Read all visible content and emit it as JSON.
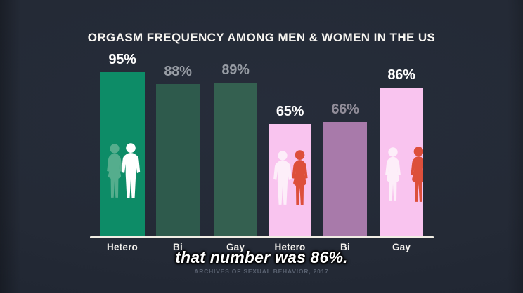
{
  "title": "ORGASM FREQUENCY AMONG MEN & WOMEN IN THE US",
  "caption": "that number was 86%.",
  "source": "ARCHIVES OF SEXUAL BEHAVIOR, 2017",
  "colors": {
    "background": "#242a36",
    "axis_line": "#f1ede4",
    "men_highlight_green": "#0d8c67",
    "men_muted_green": "#2f5b4d",
    "women_highlight_pink": "#f9c4ef",
    "women_muted_mauve": "#a87aaa",
    "value_label_bright": "#ffffff",
    "value_label_muted": "#979ca4",
    "figure_red": "#dd4f3b",
    "figure_light_green": "#55ad8d",
    "figure_white": "#ffffff",
    "figure_pink_white": "#fdeef9"
  },
  "chart_data": {
    "type": "bar",
    "title": "ORGASM FREQUENCY AMONG MEN & WOMEN IN THE US",
    "unit": "%",
    "ylim": [
      0,
      100
    ],
    "grid": false,
    "legend": false,
    "categories": [
      "Hetero",
      "Bi",
      "Gay",
      "Hetero",
      "Bi",
      "Gay"
    ],
    "values": [
      95,
      88,
      89,
      65,
      66,
      86
    ],
    "source": "ARCHIVES OF SEXUAL BEHAVIOR, 2017",
    "bars": [
      {
        "category": "Hetero",
        "value": 95,
        "value_label": "95%",
        "bar_color": "#0d8c67",
        "value_label_color": "#ffffff",
        "highlighted": true,
        "figures": [
          {
            "icon": "woman-silhouette-icon",
            "color": "#55ad8d"
          },
          {
            "icon": "man-silhouette-icon",
            "color": "#ffffff"
          }
        ]
      },
      {
        "category": "Bi",
        "value": 88,
        "value_label": "88%",
        "bar_color": "#2e5a4c",
        "value_label_color": "#979ca4",
        "highlighted": false,
        "figures": []
      },
      {
        "category": "Gay",
        "value": 89,
        "value_label": "89%",
        "bar_color": "#346050",
        "value_label_color": "#979ca4",
        "highlighted": false,
        "figures": []
      },
      {
        "category": "Hetero",
        "value": 65,
        "value_label": "65%",
        "bar_color": "#f9c4ef",
        "value_label_color": "#ffffff",
        "highlighted": true,
        "figures": [
          {
            "icon": "man-silhouette-icon",
            "color": "#fdeef9"
          },
          {
            "icon": "woman-silhouette-icon",
            "color": "#dd4f3b"
          }
        ]
      },
      {
        "category": "Bi",
        "value": 66,
        "value_label": "66%",
        "bar_color": "#a87aaa",
        "value_label_color": "#918d99",
        "highlighted": false,
        "figures": []
      },
      {
        "category": "Gay",
        "value": 86,
        "value_label": "86%",
        "bar_color": "#f9c4ef",
        "value_label_color": "#ffffff",
        "highlighted": true,
        "figures": [
          {
            "icon": "woman-silhouette-icon",
            "color": "#fdeef9"
          },
          {
            "icon": "woman-silhouette-icon",
            "color": "#dd4f3b"
          }
        ]
      }
    ]
  }
}
